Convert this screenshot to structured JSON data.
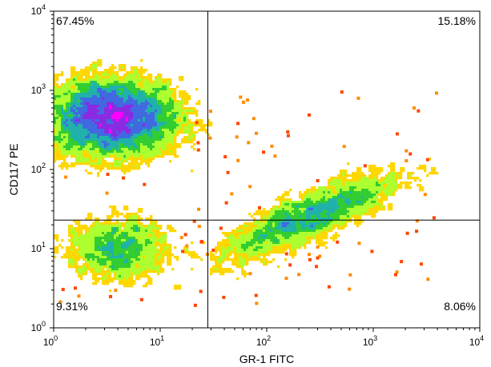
{
  "chart_data": {
    "type": "scatter",
    "xlabel": "GR-1 FITC",
    "ylabel": "CD117 PE",
    "xscale": "log",
    "yscale": "log",
    "xlim": [
      1,
      10000
    ],
    "ylim": [
      1,
      10000
    ],
    "x_ticks": [
      {
        "base": "10",
        "exp": "0"
      },
      {
        "base": "10",
        "exp": "1"
      },
      {
        "base": "10",
        "exp": "2"
      },
      {
        "base": "10",
        "exp": "3"
      },
      {
        "base": "10",
        "exp": "4"
      }
    ],
    "y_ticks": [
      {
        "base": "10",
        "exp": "0"
      },
      {
        "base": "10",
        "exp": "1"
      },
      {
        "base": "10",
        "exp": "2"
      },
      {
        "base": "10",
        "exp": "3"
      },
      {
        "base": "10",
        "exp": "4"
      }
    ],
    "quadrant_gate": {
      "x": 28,
      "y": 23
    },
    "quadrants": [
      {
        "position": "upper-left",
        "label": "67.45%",
        "percent": 67.45
      },
      {
        "position": "upper-right",
        "label": "15.18%",
        "percent": 15.18
      },
      {
        "position": "lower-left",
        "label": "9.31%",
        "percent": 9.31
      },
      {
        "position": "lower-right",
        "label": "8.06%",
        "percent": 8.06
      }
    ],
    "density_colormap": [
      "#ff4500",
      "#ff8c00",
      "#ffd700",
      "#adff2f",
      "#32cd32",
      "#20b2aa",
      "#4169e1",
      "#8a2be2",
      "#ff00ff"
    ],
    "populations": [
      {
        "center": [
          3.5,
          450
        ],
        "spread": [
          0.33,
          0.26
        ],
        "weight": 0.6,
        "peak_level": 8
      },
      {
        "center": [
          4,
          10
        ],
        "spread": [
          0.25,
          0.22
        ],
        "weight": 0.15,
        "peak_level": 4
      },
      {
        "center": [
          250,
          25
        ],
        "spread": [
          0.45,
          0.17
        ],
        "weight": 0.25,
        "peak_level": 5,
        "tilt": 0.55
      }
    ],
    "grid": false,
    "legend": "none"
  }
}
